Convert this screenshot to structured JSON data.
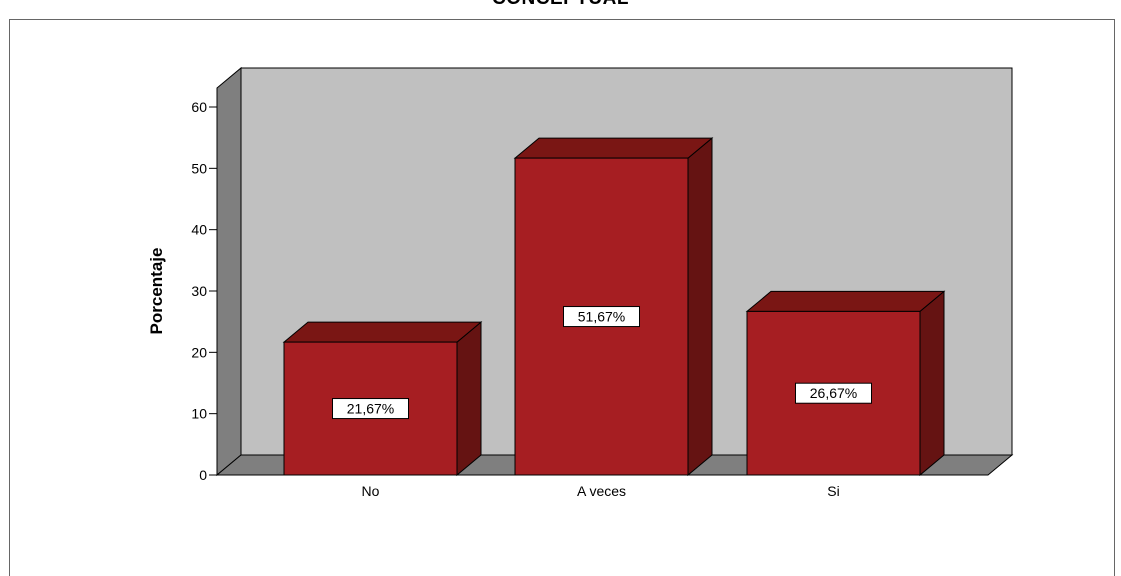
{
  "chart_data": {
    "type": "bar",
    "title": "CONCEPTUAL",
    "xlabel": "",
    "ylabel": "Porcentaje",
    "categories": [
      "No",
      "A veces",
      "Si"
    ],
    "values": [
      21.67,
      51.67,
      26.67
    ],
    "data_labels": [
      "21,67%",
      "51,67%",
      "26,67%"
    ],
    "ylim": [
      0,
      60
    ],
    "yticks": [
      "0",
      "10",
      "20",
      "30",
      "40",
      "50",
      "60"
    ],
    "grid": false,
    "legend": "none",
    "colors": {
      "bar_front": "#A61E22",
      "bar_top": "#7A1614",
      "bar_side": "#651312",
      "back_wall": "#C0C0C0",
      "side_wall": "#7F7F7F",
      "floor": "#7F7F7F",
      "edge": "#000000"
    }
  }
}
